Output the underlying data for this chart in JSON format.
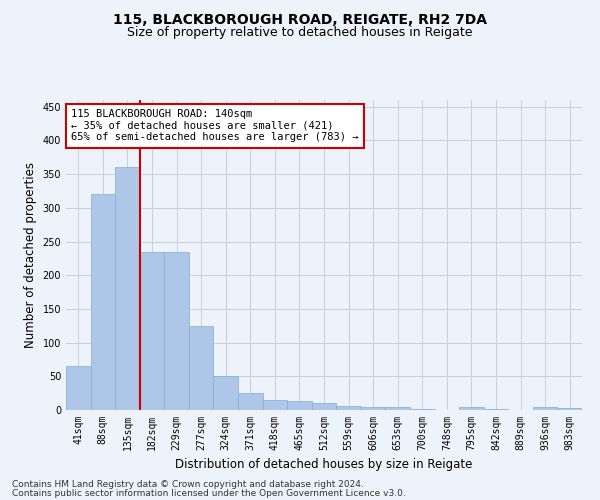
{
  "title": "115, BLACKBOROUGH ROAD, REIGATE, RH2 7DA",
  "subtitle": "Size of property relative to detached houses in Reigate",
  "xlabel": "Distribution of detached houses by size in Reigate",
  "ylabel": "Number of detached properties",
  "footer_line1": "Contains HM Land Registry data © Crown copyright and database right 2024.",
  "footer_line2": "Contains public sector information licensed under the Open Government Licence v3.0.",
  "categories": [
    "41sqm",
    "88sqm",
    "135sqm",
    "182sqm",
    "229sqm",
    "277sqm",
    "324sqm",
    "371sqm",
    "418sqm",
    "465sqm",
    "512sqm",
    "559sqm",
    "606sqm",
    "653sqm",
    "700sqm",
    "748sqm",
    "795sqm",
    "842sqm",
    "889sqm",
    "936sqm",
    "983sqm"
  ],
  "values": [
    65,
    320,
    360,
    235,
    235,
    125,
    50,
    25,
    15,
    14,
    10,
    6,
    5,
    4,
    1,
    0,
    4,
    1,
    0,
    4,
    3
  ],
  "bar_color": "#aec6e8",
  "bar_edge_color": "#7ab0d4",
  "ylim": [
    0,
    460
  ],
  "yticks": [
    0,
    50,
    100,
    150,
    200,
    250,
    300,
    350,
    400,
    450
  ],
  "annotation_box_text": "115 BLACKBOROUGH ROAD: 140sqm\n← 35% of detached houses are smaller (421)\n65% of semi-detached houses are larger (783) →",
  "red_line_x": 2.5,
  "box_facecolor": "#ffffff",
  "box_edgecolor": "#cc0000",
  "background_color": "#eef2fb",
  "grid_color": "#c8cfe0",
  "title_fontsize": 10,
  "subtitle_fontsize": 9,
  "axis_label_fontsize": 8.5,
  "tick_fontsize": 7,
  "annotation_fontsize": 7.5,
  "footer_fontsize": 6.5
}
